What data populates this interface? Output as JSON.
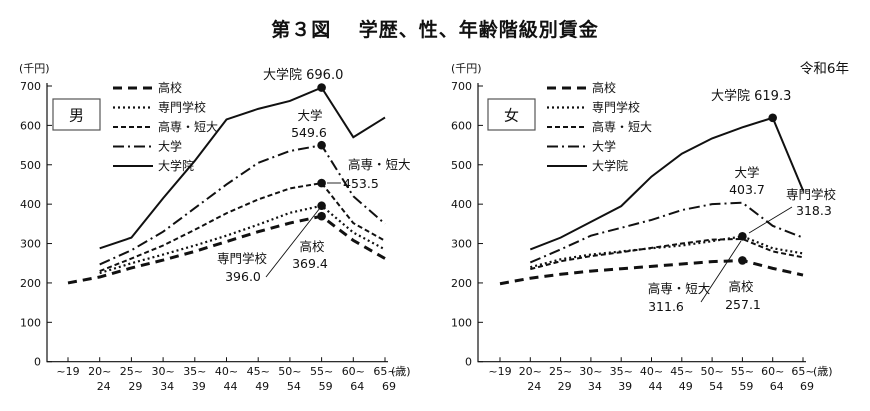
{
  "title": "第３図　 学歴、性、年齢階級別賃金",
  "unit_label": "(千円)",
  "age_unit_label": "(歳)",
  "era_label": "令和6年",
  "accent_color": "#111111",
  "chart_data": [
    {
      "type": "line",
      "title": "男",
      "ylabel": "(千円)",
      "ylim": [
        0,
        700
      ],
      "ytick_step": 100,
      "grid": false,
      "legend_position": "top-left-inside",
      "categories": [
        "~19",
        "20~24",
        "25~29",
        "30~34",
        "35~39",
        "40~44",
        "45~49",
        "50~54",
        "55~59",
        "60~64",
        "65~69"
      ],
      "series": [
        {
          "name": "高校",
          "style": "long-dash",
          "values": [
            200,
            215,
            238,
            258,
            280,
            305,
            330,
            352,
            369.4,
            308,
            262
          ]
        },
        {
          "name": "専門学校",
          "style": "dotted",
          "values": [
            null,
            225,
            250,
            272,
            295,
            320,
            348,
            378,
            396.0,
            328,
            285
          ]
        },
        {
          "name": "高専・短大",
          "style": "short-dash",
          "values": [
            null,
            230,
            262,
            295,
            335,
            377,
            412,
            440,
            453.5,
            352,
            307
          ]
        },
        {
          "name": "大学",
          "style": "dash-dot",
          "values": [
            null,
            247,
            283,
            330,
            390,
            450,
            505,
            535,
            549.6,
            420,
            350
          ]
        },
        {
          "name": "大学院",
          "style": "solid",
          "values": [
            null,
            288,
            315,
            415,
            510,
            615,
            642,
            662,
            696.0,
            570,
            620
          ]
        }
      ],
      "annotations": [
        {
          "series": "大学院",
          "value": "696.0"
        },
        {
          "series": "大学",
          "value": "549.6"
        },
        {
          "series": "高専・短大",
          "value": "453.5"
        },
        {
          "series": "専門学校",
          "value": "396.0"
        },
        {
          "series": "高校",
          "value": "369.4"
        }
      ]
    },
    {
      "type": "line",
      "title": "女",
      "ylabel": "(千円)",
      "ylim": [
        0,
        700
      ],
      "ytick_step": 100,
      "grid": false,
      "legend_position": "top-left-inside",
      "categories": [
        "~19",
        "20~24",
        "25~29",
        "30~34",
        "35~39",
        "40~44",
        "45~49",
        "50~54",
        "55~59",
        "60~64",
        "65~69"
      ],
      "series": [
        {
          "name": "高校",
          "style": "long-dash",
          "values": [
            198,
            212,
            222,
            230,
            236,
            242,
            248,
            254,
            257.1,
            237,
            220
          ]
        },
        {
          "name": "専門学校",
          "style": "dotted",
          "values": [
            null,
            240,
            260,
            272,
            280,
            288,
            295,
            306,
            318.3,
            288,
            275
          ]
        },
        {
          "name": "高専・短大",
          "style": "short-dash",
          "values": [
            null,
            235,
            255,
            268,
            278,
            289,
            300,
            310,
            311.6,
            280,
            265
          ]
        },
        {
          "name": "大学",
          "style": "dash-dot",
          "values": [
            null,
            252,
            285,
            320,
            340,
            360,
            385,
            400,
            403.7,
            345,
            315
          ]
        },
        {
          "name": "大学院",
          "style": "solid",
          "values": [
            null,
            285,
            315,
            355,
            395,
            470,
            528,
            567,
            595,
            619.3,
            435
          ]
        }
      ],
      "annotations": [
        {
          "series": "大学院",
          "value": "619.3"
        },
        {
          "series": "大学",
          "value": "403.7"
        },
        {
          "series": "専門学校",
          "value": "318.3"
        },
        {
          "series": "高専・短大",
          "value": "311.6"
        },
        {
          "series": "高校",
          "value": "257.1"
        }
      ]
    }
  ]
}
